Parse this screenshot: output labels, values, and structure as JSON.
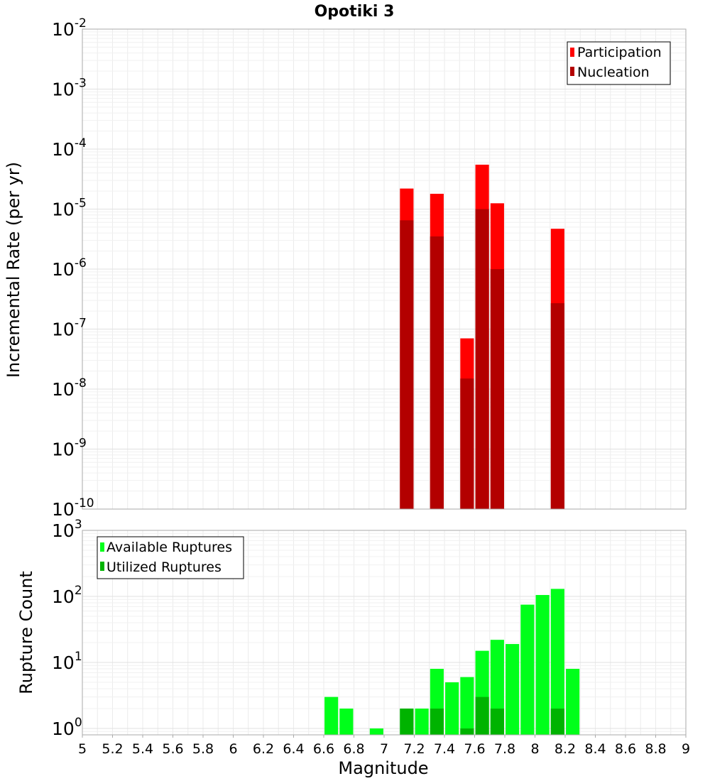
{
  "chart_data": [
    {
      "type": "bar",
      "title": "Opotiki 3",
      "xlabel": "Magnitude",
      "ylabel": "Incremental Rate (per yr)",
      "yscale": "log",
      "ylim": [
        1e-10,
        0.01
      ],
      "xlim": [
        5,
        9
      ],
      "bar_width_mag": 0.09,
      "legend_position": "top-right",
      "series": [
        {
          "name": "Participation",
          "color": "#ff0000",
          "x": [
            7.15,
            7.35,
            7.55,
            7.65,
            7.75,
            8.15
          ],
          "values": [
            2.2e-05,
            1.8e-05,
            7e-08,
            5.5e-05,
            1.25e-05,
            4.7e-06
          ]
        },
        {
          "name": "Nucleation",
          "color": "#b30000",
          "x": [
            7.15,
            7.35,
            7.55,
            7.65,
            7.75,
            8.15
          ],
          "values": [
            6.5e-06,
            3.5e-06,
            1.5e-08,
            1e-05,
            1e-06,
            2.7e-07
          ]
        }
      ],
      "y_tick_labels": [
        {
          "base": "10",
          "exp": "-2"
        },
        {
          "base": "10",
          "exp": "-3"
        },
        {
          "base": "10",
          "exp": "-4"
        },
        {
          "base": "10",
          "exp": "-5"
        },
        {
          "base": "10",
          "exp": "-6"
        },
        {
          "base": "10",
          "exp": "-7"
        },
        {
          "base": "10",
          "exp": "-8"
        },
        {
          "base": "10",
          "exp": "-9"
        },
        {
          "base": "10",
          "exp": "-10"
        }
      ]
    },
    {
      "type": "bar",
      "title": "",
      "xlabel": "Magnitude",
      "ylabel": "Rupture Count",
      "yscale": "log",
      "ylim": [
        0.8,
        1000
      ],
      "xlim": [
        5,
        9
      ],
      "bar_width_mag": 0.09,
      "legend_position": "top-left",
      "series": [
        {
          "name": "Available Ruptures",
          "color": "#00ff1a",
          "x": [
            6.65,
            6.75,
            6.95,
            7.15,
            7.25,
            7.35,
            7.45,
            7.55,
            7.65,
            7.75,
            7.85,
            7.95,
            8.05,
            8.15,
            8.25
          ],
          "values": [
            3,
            2,
            1,
            2,
            2,
            8,
            5,
            6,
            15,
            22,
            19,
            75,
            105,
            130,
            8
          ]
        },
        {
          "name": "Utilized Ruptures",
          "color": "#00b300",
          "x": [
            7.15,
            7.35,
            7.55,
            7.65,
            7.75,
            8.15
          ],
          "values": [
            2,
            2,
            1,
            3,
            2,
            2
          ]
        }
      ],
      "y_tick_labels": [
        {
          "base": "10",
          "exp": "3"
        },
        {
          "base": "10",
          "exp": "2"
        },
        {
          "base": "10",
          "exp": "1"
        },
        {
          "base": "10",
          "exp": "0"
        }
      ],
      "x_tick_labels": [
        "5",
        "5.2",
        "5.4",
        "5.6",
        "5.8",
        "6",
        "6.2",
        "6.4",
        "6.6",
        "6.8",
        "7",
        "7.2",
        "7.4",
        "7.6",
        "7.8",
        "8",
        "8.2",
        "8.4",
        "8.6",
        "8.8",
        "9"
      ]
    }
  ]
}
